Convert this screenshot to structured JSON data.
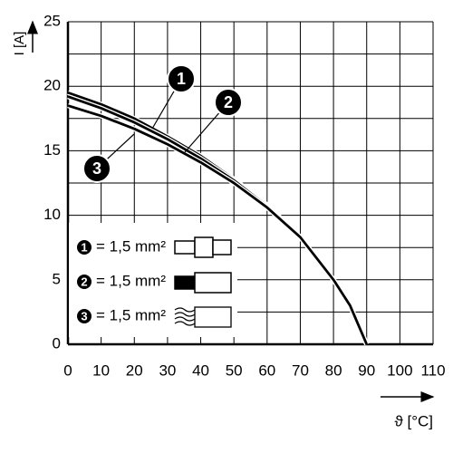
{
  "chart_data": {
    "type": "line",
    "y_label": "I [A]",
    "x_label": "ϑ [°C]",
    "x": [
      0,
      10,
      20,
      30,
      40,
      50,
      60,
      70,
      80,
      85,
      90
    ],
    "series": [
      {
        "marker": "1",
        "name": "= 1,5 mm²",
        "color": "#000000",
        "values": [
          19.5,
          18.6,
          17.5,
          16.1,
          14.6,
          12.8,
          10.8,
          8.3,
          5.0,
          3.0,
          0
        ]
      },
      {
        "marker": "2",
        "name": "= 1,5 mm²",
        "color": "#000000",
        "values": [
          19.2,
          18.3,
          17.2,
          15.9,
          14.4,
          12.7,
          10.7,
          8.3,
          5.0,
          3.0,
          0
        ]
      },
      {
        "marker": "3",
        "name": "= 1,5 mm²",
        "color": "#000000",
        "values": [
          18.5,
          17.7,
          16.7,
          15.5,
          14.1,
          12.5,
          10.6,
          8.3,
          5.0,
          3.0,
          0
        ]
      }
    ],
    "xlim": [
      0,
      110
    ],
    "ylim": [
      0,
      25
    ],
    "xticks": [
      0,
      10,
      20,
      30,
      40,
      50,
      60,
      70,
      80,
      90,
      100,
      110
    ],
    "yticks": [
      0,
      5,
      10,
      15,
      20,
      25
    ],
    "yminor": [
      2.5,
      7.5,
      12.5,
      17.5,
      22.5
    ],
    "grid": true
  }
}
